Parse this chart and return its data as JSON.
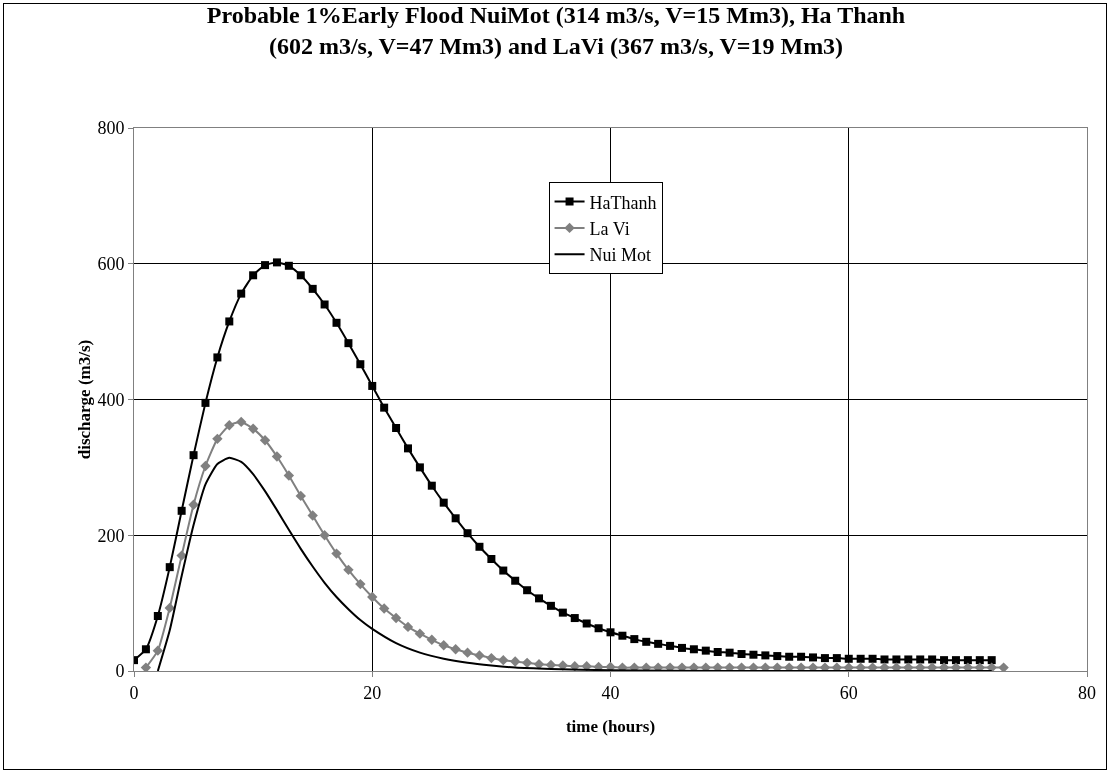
{
  "chart_data": {
    "type": "line",
    "title": "Probable 1%Early Flood NuiMot (314 m3/s, V=15 Mm3), Ha Thanh\n(602 m3/s, V=47 Mm3) and LaVi (367 m3/s, V=19 Mm3)",
    "xlabel": "time (hours)",
    "ylabel": "discharge (m3/s)",
    "xlim": [
      0,
      80
    ],
    "xticks": [
      0,
      20,
      40,
      60,
      80
    ],
    "ylim": [
      0,
      800
    ],
    "yticks": [
      0,
      200,
      400,
      600,
      800
    ],
    "grid": true,
    "legend": "top",
    "line_style": "solid",
    "series": [
      {
        "name": "HaThanh",
        "color": "#000000",
        "marker": "square",
        "x": [
          0,
          1,
          2,
          3,
          4,
          5,
          6,
          7,
          8,
          9,
          10,
          11,
          12,
          13,
          14,
          15,
          16,
          17,
          18,
          19,
          20,
          21,
          22,
          23,
          24,
          25,
          26,
          27,
          28,
          29,
          30,
          31,
          32,
          33,
          34,
          35,
          36,
          37,
          38,
          39,
          40,
          41,
          42,
          43,
          44,
          45,
          46,
          47,
          48,
          49,
          50,
          51,
          52,
          53,
          54,
          55,
          56,
          57,
          58,
          59,
          60,
          61,
          62,
          63,
          64,
          65,
          66,
          67,
          68,
          69,
          70,
          71,
          72
        ],
        "values": [
          16,
          32,
          81,
          153,
          236,
          318,
          395,
          462,
          515,
          556,
          583,
          598,
          602,
          597,
          583,
          563,
          540,
          513,
          483,
          452,
          420,
          388,
          358,
          328,
          300,
          273,
          248,
          225,
          203,
          183,
          165,
          148,
          133,
          119,
          107,
          96,
          86,
          78,
          70,
          63,
          57,
          52,
          47,
          43,
          40,
          37,
          34,
          32,
          30,
          28,
          27,
          25,
          24,
          23,
          22,
          21,
          21,
          20,
          19,
          19,
          18,
          18,
          18,
          17,
          17,
          17,
          17,
          17,
          16,
          16,
          16,
          16,
          16
        ]
      },
      {
        "name": "La Vi",
        "color": "#808080",
        "marker": "diamond",
        "x": [
          1,
          2,
          3,
          4,
          5,
          6,
          7,
          8,
          9,
          10,
          11,
          12,
          13,
          14,
          15,
          16,
          17,
          18,
          19,
          20,
          21,
          22,
          23,
          24,
          25,
          26,
          27,
          28,
          29,
          30,
          31,
          32,
          33,
          34,
          35,
          36,
          37,
          38,
          39,
          40,
          41,
          42,
          43,
          44,
          45,
          46,
          47,
          48,
          49,
          50,
          51,
          52,
          53,
          54,
          55,
          56,
          57,
          58,
          59,
          60,
          61,
          62,
          63,
          64,
          65,
          66,
          67,
          68,
          69,
          70,
          71,
          72,
          73
        ],
        "values": [
          5,
          30,
          93,
          170,
          245,
          302,
          342,
          362,
          367,
          357,
          340,
          316,
          288,
          258,
          229,
          200,
          173,
          149,
          128,
          109,
          92,
          78,
          65,
          55,
          46,
          38,
          32,
          27,
          23,
          19,
          16,
          14,
          12,
          10,
          9,
          8,
          7,
          7,
          6,
          6,
          5,
          5,
          5,
          5,
          5,
          5,
          5,
          5,
          5,
          5,
          5,
          5,
          5,
          5,
          5,
          5,
          5,
          5,
          5,
          5,
          5,
          5,
          5,
          5,
          5,
          5,
          5,
          5,
          5,
          5,
          5,
          5,
          5
        ]
      },
      {
        "name": "Nui Mot",
        "color": "#000000",
        "marker": "none",
        "x": [
          2,
          3,
          4,
          5,
          6,
          7,
          8,
          9,
          10,
          11,
          12,
          13,
          14,
          15,
          16,
          17,
          18,
          19,
          20,
          22,
          24,
          26,
          28,
          30,
          32,
          35,
          40,
          50,
          60,
          72
        ],
        "values": [
          0,
          60,
          140,
          215,
          275,
          305,
          314,
          308,
          290,
          265,
          237,
          208,
          180,
          154,
          130,
          109,
          91,
          75,
          62,
          41,
          27,
          18,
          12,
          8,
          5,
          3,
          1,
          0,
          0,
          0
        ]
      }
    ]
  }
}
